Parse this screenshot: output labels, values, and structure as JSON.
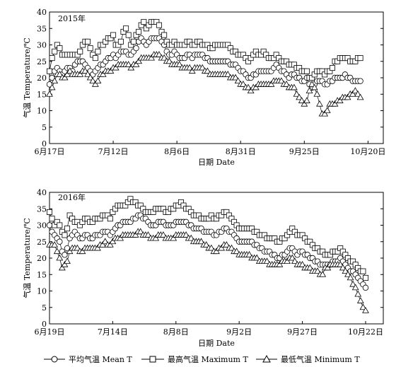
{
  "legend": {
    "mean_label": "平均气温 Mean T",
    "max_label": "最高气温 Maximum T",
    "min_label": "最低气温 Minimum T"
  },
  "chart_data": [
    {
      "type": "line",
      "title": "2015年",
      "xlabel": "日期 Date",
      "ylabel": "气温 Temperature/℃",
      "ylim": [
        0,
        40
      ],
      "yticks": [
        0,
        5,
        10,
        15,
        20,
        25,
        30,
        35,
        40
      ],
      "xlim": [
        "2015-06-17",
        "2015-10-26"
      ],
      "xticks": [
        {
          "date": "2015-06-17",
          "label": "6月17日"
        },
        {
          "date": "2015-07-12",
          "label": "7月12日"
        },
        {
          "date": "2015-08-06",
          "label": "8月6日"
        },
        {
          "date": "2015-08-31",
          "label": "8月31日"
        },
        {
          "date": "2015-09-25",
          "label": "9月25日"
        },
        {
          "date": "2015-10-20",
          "label": "10月20日"
        }
      ],
      "x_start": "2015-06-17",
      "x_step_days": 1,
      "series": [
        {
          "name": "平均气温 Mean T",
          "marker": "circle",
          "values": [
            18,
            20,
            22,
            23,
            22,
            21,
            22,
            23,
            23,
            22,
            24,
            25,
            25,
            25,
            24,
            23,
            22,
            21,
            22,
            23,
            24,
            24,
            25,
            26,
            26,
            27,
            26,
            27,
            28,
            28,
            28,
            27,
            27,
            28,
            29,
            31,
            32,
            31,
            30,
            31,
            32,
            32,
            32,
            32,
            31,
            30,
            28,
            27,
            27,
            28,
            27,
            26,
            26,
            26,
            27,
            27,
            26,
            27,
            27,
            27,
            27,
            26,
            26,
            25,
            25,
            25,
            25,
            25,
            25,
            25,
            25,
            24,
            24,
            24,
            23,
            22,
            22,
            21,
            20,
            20,
            21,
            21,
            22,
            22,
            22,
            22,
            22,
            22,
            23,
            24,
            23,
            22,
            22,
            21,
            20,
            21,
            21,
            20,
            20,
            19,
            19,
            20,
            18,
            17,
            18,
            19,
            19,
            19,
            18,
            18,
            19,
            19,
            20,
            20,
            20,
            20,
            21,
            20,
            20,
            19,
            19,
            19,
            19
          ]
        },
        {
          "name": "最高气温 Maximum T",
          "marker": "square",
          "values": [
            22,
            26,
            28,
            30,
            29,
            27,
            27,
            27,
            27,
            27,
            27,
            27,
            28,
            30,
            31,
            31,
            29,
            27,
            26,
            28,
            30,
            30,
            31,
            32,
            32,
            33,
            30,
            30,
            31,
            34,
            35,
            33,
            30,
            31,
            33,
            34,
            36,
            37,
            35,
            36,
            37,
            37,
            37,
            36,
            34,
            33,
            31,
            30,
            30,
            31,
            30,
            30,
            30,
            30,
            31,
            31,
            30,
            30,
            31,
            31,
            30,
            30,
            30,
            29,
            29,
            30,
            30,
            30,
            30,
            30,
            30,
            29,
            28,
            28,
            27,
            27,
            27,
            26,
            25,
            26,
            27,
            28,
            27,
            27,
            28,
            27,
            26,
            26,
            26,
            27,
            26,
            25,
            25,
            25,
            24,
            24,
            24,
            23,
            23,
            22,
            22,
            22,
            20,
            20,
            21,
            22,
            22,
            22,
            21,
            22,
            22,
            23,
            25,
            25,
            26,
            26,
            26,
            26,
            25,
            25,
            25,
            26,
            26
          ]
        },
        {
          "name": "最低气温 Minimum T",
          "marker": "triangle",
          "values": [
            15,
            17,
            19,
            21,
            21,
            20,
            20,
            21,
            22,
            21,
            21,
            21,
            21,
            22,
            22,
            21,
            20,
            19,
            18,
            19,
            21,
            21,
            22,
            22,
            22,
            23,
            23,
            24,
            24,
            24,
            24,
            24,
            23,
            24,
            24,
            25,
            26,
            26,
            26,
            26,
            26,
            27,
            27,
            27,
            26,
            26,
            25,
            25,
            24,
            24,
            24,
            24,
            23,
            23,
            23,
            23,
            22,
            23,
            23,
            23,
            23,
            22,
            22,
            21,
            21,
            21,
            21,
            21,
            21,
            21,
            21,
            20,
            20,
            20,
            19,
            18,
            18,
            17,
            17,
            16,
            17,
            17,
            18,
            18,
            18,
            18,
            18,
            18,
            19,
            19,
            19,
            19,
            18,
            18,
            17,
            17,
            17,
            15,
            14,
            13,
            12,
            13,
            16,
            18,
            17,
            15,
            12,
            9,
            9,
            10,
            12,
            12,
            12,
            13,
            13,
            14,
            14,
            14,
            15,
            15,
            16,
            15,
            14
          ]
        }
      ]
    },
    {
      "type": "line",
      "title": "2016年",
      "xlabel": "日期 Date",
      "ylabel": "气温 Temperature/℃",
      "ylim": [
        0,
        40
      ],
      "yticks": [
        0,
        5,
        10,
        15,
        20,
        25,
        30,
        35,
        40
      ],
      "xlim": [
        "2016-06-19",
        "2016-10-29"
      ],
      "xticks": [
        {
          "date": "2016-06-19",
          "label": "6月19日"
        },
        {
          "date": "2016-07-14",
          "label": "7月14日"
        },
        {
          "date": "2016-08-08",
          "label": "8月8日"
        },
        {
          "date": "2016-09-02",
          "label": "9月2日"
        },
        {
          "date": "2016-09-27",
          "label": "9月27日"
        },
        {
          "date": "2016-10-22",
          "label": "10月22日"
        }
      ],
      "x_start": "2016-06-19",
      "x_step_days": 1,
      "series": [
        {
          "name": "平均气温 Mean T",
          "marker": "circle",
          "values": [
            30,
            28,
            27,
            26,
            25,
            22,
            21,
            23,
            26,
            27,
            28,
            27,
            26,
            26,
            27,
            27,
            26,
            26,
            27,
            27,
            27,
            28,
            28,
            28,
            27,
            28,
            29,
            30,
            30,
            31,
            31,
            31,
            31,
            32,
            32,
            33,
            33,
            32,
            32,
            31,
            30,
            30,
            30,
            31,
            31,
            31,
            30,
            30,
            30,
            30,
            31,
            31,
            31,
            31,
            31,
            30,
            30,
            29,
            29,
            29,
            29,
            28,
            28,
            28,
            28,
            27,
            27,
            28,
            28,
            29,
            29,
            28,
            28,
            27,
            26,
            25,
            25,
            25,
            25,
            25,
            25,
            24,
            24,
            23,
            23,
            22,
            22,
            22,
            21,
            21,
            20,
            20,
            21,
            21,
            22,
            23,
            23,
            22,
            21,
            22,
            22,
            21,
            21,
            20,
            20,
            19,
            19,
            18,
            18,
            18,
            18,
            18,
            19,
            19,
            19,
            20,
            19,
            18,
            17,
            16,
            16,
            15,
            14,
            13,
            12,
            11
          ]
        },
        {
          "name": "最高气温 Maximum T",
          "marker": "square",
          "values": [
            34,
            32,
            30,
            31,
            30,
            28,
            27,
            29,
            33,
            32,
            31,
            31,
            30,
            31,
            32,
            32,
            31,
            31,
            32,
            32,
            32,
            33,
            33,
            33,
            32,
            34,
            35,
            36,
            36,
            36,
            36,
            37,
            38,
            37,
            37,
            36,
            36,
            35,
            34,
            34,
            34,
            34,
            35,
            35,
            35,
            35,
            34,
            34,
            35,
            35,
            36,
            36,
            37,
            36,
            35,
            35,
            34,
            33,
            33,
            33,
            32,
            32,
            32,
            32,
            33,
            32,
            32,
            33,
            33,
            34,
            34,
            33,
            32,
            31,
            30,
            29,
            29,
            29,
            29,
            29,
            29,
            28,
            28,
            27,
            27,
            27,
            26,
            26,
            26,
            26,
            25,
            25,
            26,
            26,
            27,
            28,
            29,
            28,
            27,
            27,
            27,
            26,
            25,
            25,
            24,
            23,
            23,
            22,
            22,
            21,
            21,
            21,
            22,
            22,
            22,
            23,
            22,
            21,
            20,
            19,
            19,
            18,
            17,
            16,
            16,
            14
          ]
        },
        {
          "name": "最低气温 Minimum T",
          "marker": "triangle",
          "values": [
            24,
            24,
            24,
            22,
            20,
            17,
            18,
            19,
            22,
            23,
            23,
            23,
            22,
            22,
            23,
            23,
            23,
            23,
            23,
            23,
            24,
            24,
            25,
            24,
            24,
            25,
            26,
            26,
            26,
            27,
            27,
            27,
            27,
            27,
            27,
            28,
            28,
            27,
            27,
            27,
            26,
            26,
            26,
            27,
            27,
            27,
            26,
            26,
            26,
            26,
            27,
            27,
            27,
            27,
            27,
            26,
            26,
            25,
            25,
            25,
            25,
            24,
            24,
            23,
            23,
            22,
            22,
            23,
            23,
            24,
            24,
            23,
            23,
            22,
            22,
            21,
            21,
            21,
            21,
            21,
            20,
            20,
            20,
            19,
            19,
            19,
            19,
            18,
            18,
            18,
            18,
            18,
            19,
            19,
            19,
            20,
            20,
            19,
            18,
            18,
            18,
            17,
            17,
            17,
            16,
            16,
            16,
            15,
            15,
            17,
            17,
            18,
            18,
            18,
            18,
            18,
            17,
            16,
            15,
            14,
            12,
            11,
            9,
            7,
            5,
            4
          ]
        }
      ]
    }
  ]
}
